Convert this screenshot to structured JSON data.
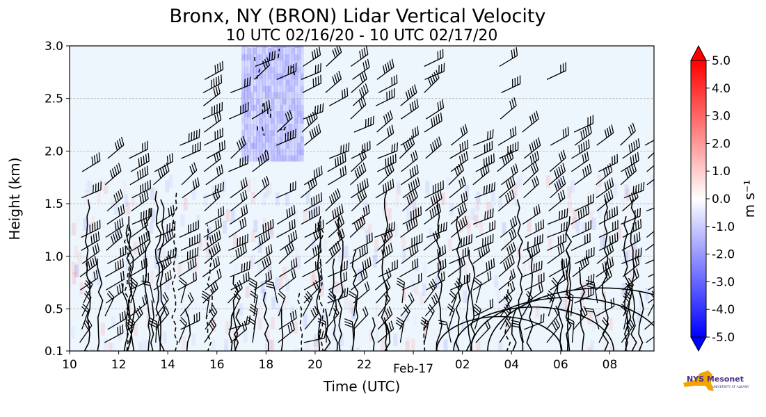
{
  "chart_data": {
    "type": "heatmap",
    "title": "Bronx, NY (BRON) Lidar Vertical Velocity",
    "subtitle": "10 UTC 02/16/20 - 10 UTC 02/17/20",
    "xlabel": "Time (UTC)",
    "ylabel": "Height (km)",
    "x_ticks": [
      "10",
      "12",
      "14",
      "16",
      "18",
      "20",
      "22",
      "Feb-17",
      "02",
      "04",
      "06",
      "08"
    ],
    "x_tick_hours": [
      0,
      2,
      4,
      6,
      8,
      10,
      12,
      14,
      16,
      18,
      20,
      22
    ],
    "xlim_hours": [
      0,
      23.8
    ],
    "y_ticks": [
      "0.1",
      "0.5",
      "1.0",
      "1.5",
      "2.0",
      "2.5",
      "3.0"
    ],
    "y_tick_values": [
      0.1,
      0.5,
      1.0,
      1.5,
      2.0,
      2.5,
      3.0
    ],
    "ylim": [
      0.1,
      3.0
    ],
    "grid": "horizontal dashed",
    "colorbar": {
      "label": "m s⁻¹",
      "ticks": [
        "5.0",
        "4.0",
        "3.0",
        "2.0",
        "1.0",
        "0.0",
        "-1.0",
        "-2.0",
        "-3.0",
        "-4.0",
        "-5.0"
      ],
      "tick_values": [
        5,
        4,
        3,
        2,
        1,
        0,
        -1,
        -2,
        -3,
        -4,
        -5
      ],
      "range": [
        -5.0,
        5.0
      ],
      "colors": {
        "min": "#0000ff",
        "mid": "#ffffff",
        "max": "#ff0000"
      }
    },
    "background_field_color": "#eef6fd",
    "downdraft_region": {
      "time_hours": [
        7.0,
        9.5
      ],
      "height_km": [
        1.9,
        3.0
      ],
      "value": -0.8
    },
    "wind_barbs": {
      "time_step_hours": 1.0,
      "height_step_km": 0.125,
      "present": true
    }
  },
  "logo": {
    "name": "nys-mesonet-logo",
    "text": "NYS Mesonet",
    "subtext": "UNIVERSITY AT ALBANY"
  }
}
